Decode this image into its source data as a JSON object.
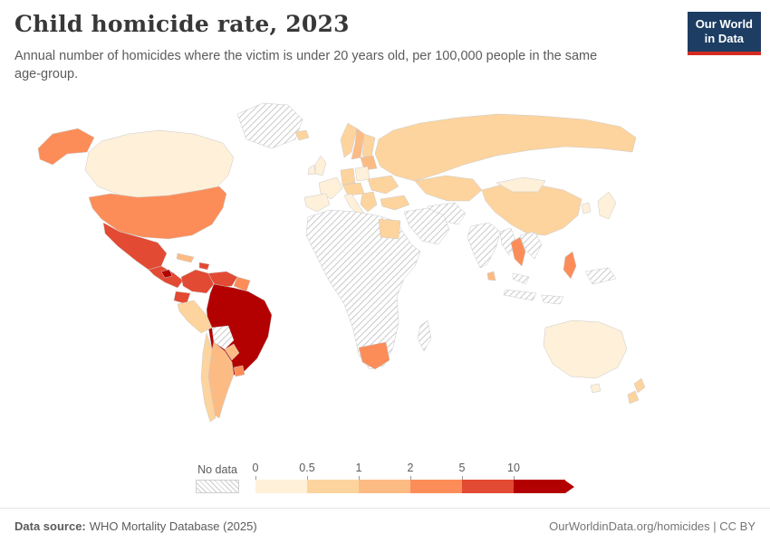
{
  "header": {
    "title": "Child homicide rate, 2023",
    "subtitle": "Annual number of homicides where the victim is under 20 years old, per 100,000 people in the same age-group."
  },
  "logo": {
    "line1": "Our World",
    "line2": "in Data",
    "bg_color": "#1d3d63",
    "accent_color": "#d42b21"
  },
  "legend": {
    "no_data_label": "No data",
    "tick_labels": [
      "0",
      "0.5",
      "1",
      "2",
      "5",
      "10"
    ]
  },
  "footer": {
    "source_label": "Data source:",
    "source_text": "WHO Mortality Database (2025)",
    "link_text": "OurWorldinData.org/homicides | CC BY"
  },
  "chart_data": {
    "type": "heatmap",
    "subtype": "choropleth-world-map",
    "title": "Child homicide rate, 2023",
    "unit": "homicides per 100,000 people in the same age-group (victims under 20)",
    "no_data_label": "No data",
    "no_data_pattern": "diagonal-hatch",
    "tick_labels": [
      "0",
      "0.5",
      "1",
      "2",
      "5",
      "10"
    ],
    "bins": [
      {
        "label": "0–0.5",
        "color": "#fef0d9"
      },
      {
        "label": "0.5–1",
        "color": "#fdd49e"
      },
      {
        "label": "1–2",
        "color": "#fdbb84"
      },
      {
        "label": "2–5",
        "color": "#fc8d59"
      },
      {
        "label": "5–10",
        "color": "#e34a33"
      },
      {
        "label": "10+",
        "color": "#b30000"
      }
    ],
    "regions": [
      {
        "key": "canada",
        "name": "Canada",
        "bin": "0–0.5"
      },
      {
        "key": "usa",
        "name": "United States",
        "bin": "2–5"
      },
      {
        "key": "alaska",
        "name": "United States (Alaska)",
        "bin": "2–5"
      },
      {
        "key": "greenland",
        "name": "Greenland",
        "bin": "no-data"
      },
      {
        "key": "iceland",
        "name": "Iceland",
        "bin": "0.5–1"
      },
      {
        "key": "mexico",
        "name": "Mexico",
        "bin": "5–10"
      },
      {
        "key": "cuba",
        "name": "Cuba",
        "bin": "1–2"
      },
      {
        "key": "hispaniola",
        "name": "Haiti / Dominican Republic",
        "bin": "5–10"
      },
      {
        "key": "central-america",
        "name": "Central America",
        "bin": "5–10"
      },
      {
        "key": "honduras",
        "name": "Honduras / El Salvador",
        "bin": "10+"
      },
      {
        "key": "colombia",
        "name": "Colombia",
        "bin": "5–10"
      },
      {
        "key": "venezuela",
        "name": "Venezuela",
        "bin": "5–10"
      },
      {
        "key": "guyanas",
        "name": "Guyana / Suriname",
        "bin": "2–5"
      },
      {
        "key": "ecuador",
        "name": "Ecuador",
        "bin": "5–10"
      },
      {
        "key": "peru",
        "name": "Peru",
        "bin": "0.5–1"
      },
      {
        "key": "brazil",
        "name": "Brazil",
        "bin": "10+"
      },
      {
        "key": "bolivia",
        "name": "Bolivia",
        "bin": "no-data"
      },
      {
        "key": "paraguay",
        "name": "Paraguay",
        "bin": "1–2"
      },
      {
        "key": "uruguay",
        "name": "Uruguay",
        "bin": "2–5"
      },
      {
        "key": "argentina",
        "name": "Argentina",
        "bin": "1–2"
      },
      {
        "key": "chile",
        "name": "Chile",
        "bin": "0.5–1"
      },
      {
        "key": "uk",
        "name": "United Kingdom",
        "bin": "0–0.5"
      },
      {
        "key": "ireland",
        "name": "Ireland",
        "bin": "0–0.5"
      },
      {
        "key": "france",
        "name": "France",
        "bin": "0–0.5"
      },
      {
        "key": "iberia",
        "name": "Spain / Portugal",
        "bin": "0–0.5"
      },
      {
        "key": "germany",
        "name": "Germany",
        "bin": "0.5–1"
      },
      {
        "key": "poland",
        "name": "Poland",
        "bin": "0–0.5"
      },
      {
        "key": "central-europe",
        "name": "Central Europe",
        "bin": "0.5–1"
      },
      {
        "key": "italy",
        "name": "Italy",
        "bin": "0–0.5"
      },
      {
        "key": "balkans",
        "name": "Balkans",
        "bin": "0.5–1"
      },
      {
        "key": "romania-ukraine",
        "name": "Romania / Ukraine",
        "bin": "0.5–1"
      },
      {
        "key": "baltics",
        "name": "Baltic states",
        "bin": "1–2"
      },
      {
        "key": "norway",
        "name": "Norway",
        "bin": "0.5–1"
      },
      {
        "key": "sweden",
        "name": "Sweden",
        "bin": "1–2"
      },
      {
        "key": "finland",
        "name": "Finland",
        "bin": "0.5–1"
      },
      {
        "key": "turkey",
        "name": "Turkey",
        "bin": "0.5–1"
      },
      {
        "key": "russia",
        "name": "Russia",
        "bin": "0.5–1"
      },
      {
        "key": "central-asia",
        "name": "Central Asia",
        "bin": "0.5–1"
      },
      {
        "key": "china",
        "name": "China",
        "bin": "0.5–1"
      },
      {
        "key": "mongolia",
        "name": "Mongolia",
        "bin": "0–0.5"
      },
      {
        "key": "india",
        "name": "India",
        "bin": "no-data"
      },
      {
        "key": "arabia",
        "name": "Arabian Peninsula",
        "bin": "no-data"
      },
      {
        "key": "iran",
        "name": "Iran",
        "bin": "no-data"
      },
      {
        "key": "africa",
        "name": "Africa (most countries)",
        "bin": "no-data"
      },
      {
        "key": "egypt",
        "name": "Egypt",
        "bin": "0.5–1"
      },
      {
        "key": "south-africa",
        "name": "South Africa",
        "bin": "2–5"
      },
      {
        "key": "madagascar",
        "name": "Madagascar",
        "bin": "no-data"
      },
      {
        "key": "myanmar",
        "name": "Myanmar",
        "bin": "no-data"
      },
      {
        "key": "thailand",
        "name": "Thailand",
        "bin": "2–5"
      },
      {
        "key": "indochina",
        "name": "Laos / Vietnam / Cambodia",
        "bin": "no-data"
      },
      {
        "key": "malaysia",
        "name": "Malaysia",
        "bin": "no-data"
      },
      {
        "key": "indonesia",
        "name": "Indonesia",
        "bin": "no-data"
      },
      {
        "key": "new-guinea",
        "name": "Papua New Guinea",
        "bin": "no-data"
      },
      {
        "key": "philippines",
        "name": "Philippines",
        "bin": "2–5"
      },
      {
        "key": "japan",
        "name": "Japan",
        "bin": "0–0.5"
      },
      {
        "key": "south-korea",
        "name": "South Korea",
        "bin": "0–0.5"
      },
      {
        "key": "sri-lanka",
        "name": "Sri Lanka",
        "bin": "1–2"
      },
      {
        "key": "australia",
        "name": "Australia",
        "bin": "0–0.5"
      },
      {
        "key": "tasmania",
        "name": "Australia (Tasmania)",
        "bin": "0–0.5"
      },
      {
        "key": "new-zealand",
        "name": "New Zealand",
        "bin": "0.5–1"
      }
    ]
  }
}
